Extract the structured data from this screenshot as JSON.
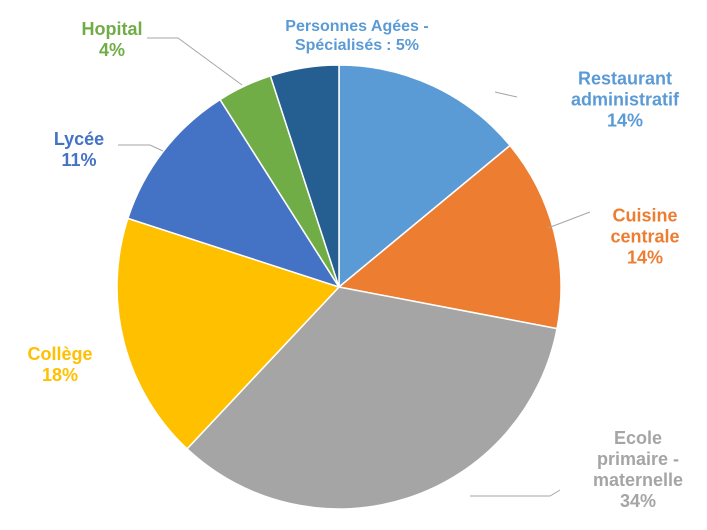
{
  "chart_data": {
    "type": "pie",
    "categories": [
      "Restaurant administratif",
      "Cuisine centrale",
      "Ecole primaire - maternelle",
      "Collège",
      "Lycée",
      "Hopital",
      "Personnes Agées - Spécialisés"
    ],
    "values": [
      14,
      14,
      34,
      18,
      11,
      4,
      5
    ],
    "value_labels": [
      "14%",
      "14%",
      "34%",
      "18%",
      "11%",
      "4%",
      ": 5%"
    ],
    "colors": [
      "#5b9bd5",
      "#ed7d31",
      "#a5a5a5",
      "#ffc000",
      "#4472c4",
      "#70ad47",
      "#255e91"
    ]
  }
}
